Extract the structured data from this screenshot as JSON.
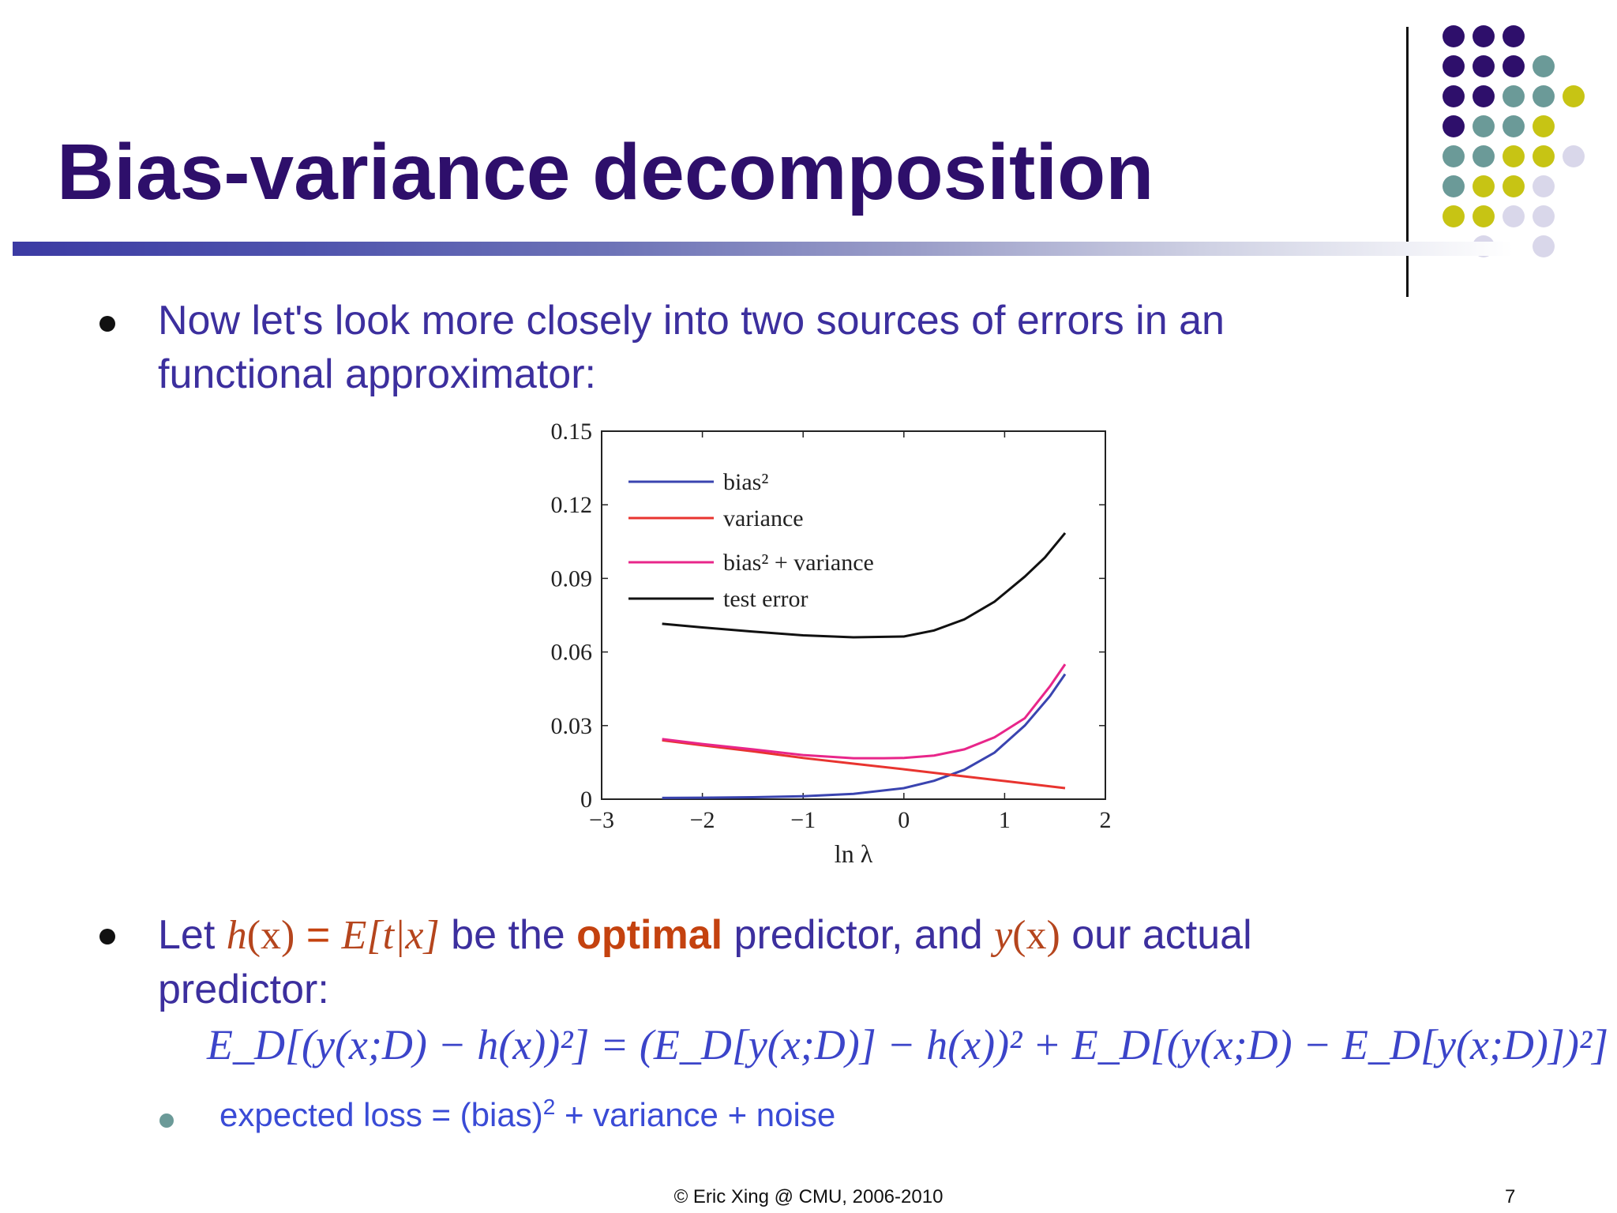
{
  "slide": {
    "title": "Bias-variance decomposition",
    "bullet1": "Now let's look more closely into two sources of errors in an functional approximator:",
    "bullet2": {
      "prefix": "Let ",
      "h": "h",
      "hx": "(x)",
      "eq": " = ",
      "E": "E",
      "Ebracket": "[t|x]",
      "mid1": " be the ",
      "optimal": "optimal",
      "mid2": " predictor, and ",
      "y": "y",
      "yx": "(x)",
      "suffix": " our actual predictor:"
    },
    "formula": "E_D[(y(x;D) − h(x))²] = (E_D[y(x;D)] − h(x))² + E_D[(y(x;D) − E_D[y(x;D)])²]",
    "sub_bullet": {
      "pre": "expected loss = (bias)",
      "sup": "2",
      "post": " + variance + noise"
    },
    "footer": "© Eric Xing @ CMU, 2006-2010",
    "page_number": "7"
  },
  "colors": {
    "title": "#2e0f6b",
    "body_text": "#3c2f9e",
    "highlight": "#c4420f",
    "formula": "#3b44c9",
    "dot_purple": "#2e0f6b",
    "dot_teal": "#6b9a98",
    "dot_olive": "#c7c414",
    "dot_lavender": "#d9d7ea"
  },
  "chart_data": {
    "type": "line",
    "xlabel": "ln λ",
    "ylabel": "",
    "xlim": [
      -3,
      2
    ],
    "ylim": [
      0,
      0.15
    ],
    "xticks": [
      "−3",
      "−2",
      "−1",
      "0",
      "1",
      "2"
    ],
    "yticks": [
      "0",
      "0.03",
      "0.06",
      "0.09",
      "0.12",
      "0.15"
    ],
    "legend_position": "top-left",
    "series": [
      {
        "name": "bias²",
        "color": "#3a44b0",
        "x": [
          -2.4,
          -2.0,
          -1.5,
          -1.0,
          -0.5,
          0.0,
          0.3,
          0.6,
          0.9,
          1.2,
          1.45,
          1.6
        ],
        "y": [
          0.0005,
          0.0006,
          0.0008,
          0.0012,
          0.0022,
          0.0045,
          0.0075,
          0.012,
          0.019,
          0.03,
          0.042,
          0.051
        ]
      },
      {
        "name": "variance",
        "color": "#e8342f",
        "x": [
          -2.4,
          -2.0,
          -1.5,
          -1.0,
          -0.5,
          0.0,
          0.5,
          1.0,
          1.6
        ],
        "y": [
          0.024,
          0.022,
          0.0195,
          0.0168,
          0.0145,
          0.0122,
          0.0098,
          0.0074,
          0.0045
        ]
      },
      {
        "name": "bias² + variance",
        "color": "#e8268a",
        "x": [
          -2.4,
          -2.0,
          -1.5,
          -1.0,
          -0.5,
          -0.2,
          0.0,
          0.3,
          0.6,
          0.9,
          1.2,
          1.45,
          1.6
        ],
        "y": [
          0.0245,
          0.0225,
          0.0203,
          0.018,
          0.0167,
          0.0167,
          0.0168,
          0.0178,
          0.0203,
          0.0252,
          0.033,
          0.046,
          0.055
        ]
      },
      {
        "name": "test error",
        "color": "#111111",
        "x": [
          -2.4,
          -2.0,
          -1.5,
          -1.0,
          -0.5,
          0.0,
          0.3,
          0.6,
          0.9,
          1.2,
          1.4,
          1.6
        ],
        "y": [
          0.0715,
          0.07,
          0.0683,
          0.0668,
          0.066,
          0.0663,
          0.0688,
          0.0733,
          0.0805,
          0.0907,
          0.0985,
          0.1085
        ]
      }
    ]
  }
}
